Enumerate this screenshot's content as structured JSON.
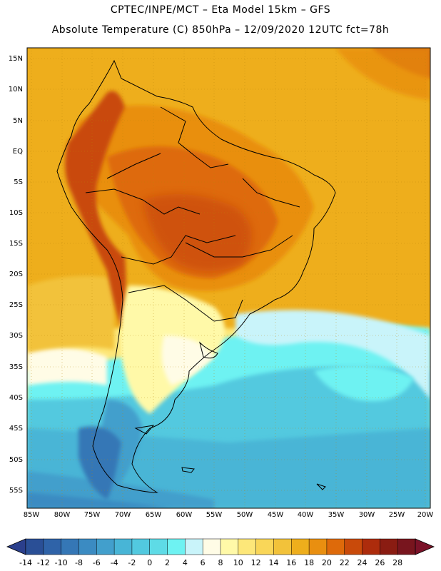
{
  "title_line1": "CPTEC/INPE/MCT  –   Eta Model 15km  –  GFS",
  "title_line2": "Absolute Temperature (C) 850hPa – 12/09/2020 12UTC fct=78h",
  "lat_labels": [
    "15N",
    "10N",
    "5N",
    "EQ",
    "5S",
    "10S",
    "15S",
    "20S",
    "25S",
    "30S",
    "35S",
    "40S",
    "45S",
    "50S",
    "55S"
  ],
  "lon_labels": [
    "85W",
    "80W",
    "75W",
    "70W",
    "65W",
    "60W",
    "55W",
    "50W",
    "45W",
    "40W",
    "35W",
    "30W",
    "25W",
    "20W"
  ],
  "colorbar": {
    "labels": [
      "-14",
      "-12",
      "-10",
      "-8",
      "-6",
      "-4",
      "-2",
      "0",
      "2",
      "4",
      "6",
      "8",
      "10",
      "12",
      "14",
      "16",
      "18",
      "20",
      "22",
      "24",
      "26",
      "28"
    ],
    "colors": [
      "#2a4f96",
      "#2f63a8",
      "#3577b6",
      "#3b8bc2",
      "#429fcc",
      "#48b5d6",
      "#52c9df",
      "#5edbe6",
      "#6ef2f2",
      "#c9f4fa",
      "#fffce6",
      "#fff9a8",
      "#fde779",
      "#f9d658",
      "#f2c23a",
      "#eeae1c",
      "#e98f10",
      "#de6a0a",
      "#c94a0a",
      "#ad2c0c",
      "#8a1c12",
      "#78151e"
    ],
    "low_color": "#2b3f8c",
    "high_color": "#7a1228"
  }
}
